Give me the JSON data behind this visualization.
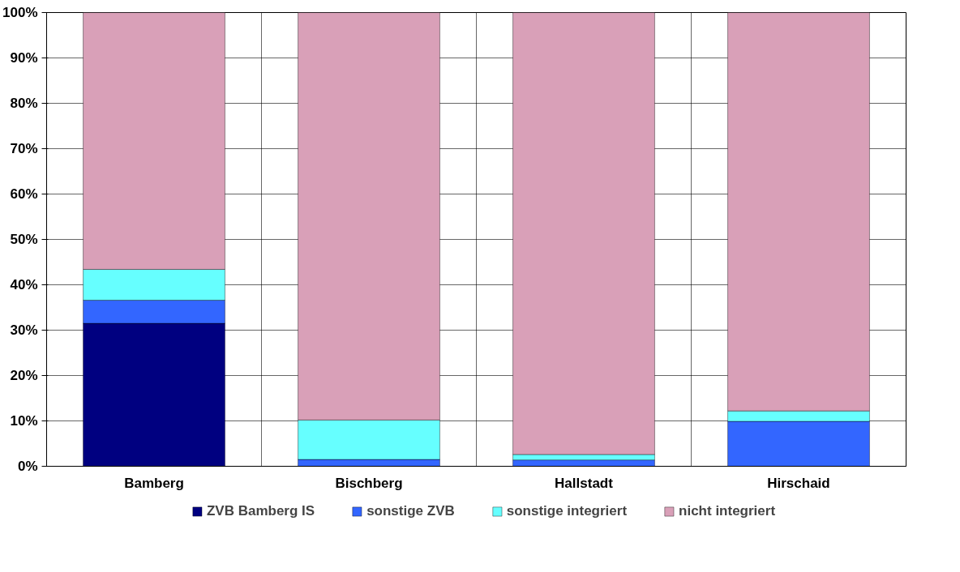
{
  "chart_data": {
    "type": "bar",
    "stacked": true,
    "categories": [
      "Bamberg",
      "Bischberg",
      "Hallstadt",
      "Hirschaid"
    ],
    "series": [
      {
        "name": "ZVB Bamberg IS",
        "color": "#000080",
        "values": [
          31.5,
          0,
          0,
          0
        ]
      },
      {
        "name": "sonstige ZVB",
        "color": "#3366ff",
        "values": [
          5.1,
          1.5,
          1.4,
          9.9
        ]
      },
      {
        "name": "sonstige integriert",
        "color": "#66ffff",
        "values": [
          6.8,
          8.7,
          1.2,
          2.3
        ]
      },
      {
        "name": "nicht integriert",
        "color": "#d9a0b8",
        "values": [
          56.6,
          89.8,
          97.4,
          87.8
        ]
      }
    ],
    "ylim": [
      0,
      100
    ],
    "yticks": [
      {
        "value": 0,
        "label": "0%"
      },
      {
        "value": 10,
        "label": "10%"
      },
      {
        "value": 20,
        "label": "20%"
      },
      {
        "value": 30,
        "label": "30%"
      },
      {
        "value": 40,
        "label": "40%"
      },
      {
        "value": 50,
        "label": "50%"
      },
      {
        "value": 60,
        "label": "60%"
      },
      {
        "value": 70,
        "label": "70%"
      },
      {
        "value": 80,
        "label": "80%"
      },
      {
        "value": 90,
        "label": "90%"
      },
      {
        "value": 100,
        "label": "100%"
      }
    ],
    "grid": true,
    "legend": "bottom"
  }
}
